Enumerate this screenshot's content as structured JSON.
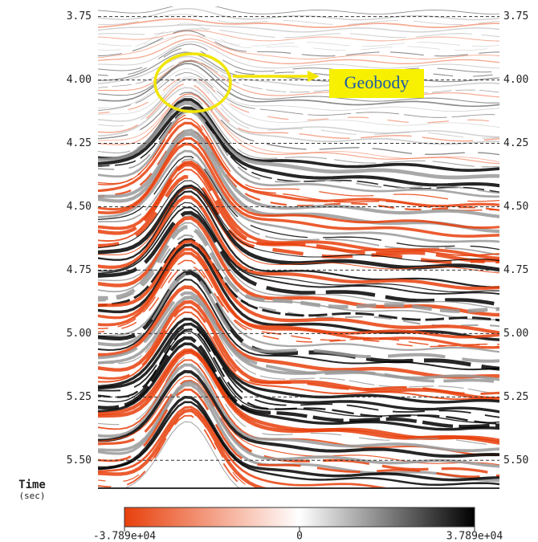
{
  "axis": {
    "label": "Time",
    "unit": "(sec)",
    "lim": [
      3.71,
      5.61
    ],
    "ticks": [
      3.75,
      {
        "value": 4,
        "label": "4.00"
      },
      4.25,
      {
        "value": 4.5,
        "label": "4.50"
      },
      4.75,
      {
        "value": 5,
        "label": "5.00"
      },
      5.25,
      {
        "value": 5.5,
        "label": "5.50"
      }
    ]
  },
  "colorbar": {
    "lim": [
      -37890,
      37890
    ],
    "colors": [
      "#e8400c",
      "#ffffff",
      "#000000"
    ],
    "ticks": [
      {
        "value": -37890,
        "label": "-3.789e+04"
      },
      0,
      {
        "value": 37890,
        "label": "3.789e+04"
      }
    ]
  },
  "annotation": "Geobody"
}
